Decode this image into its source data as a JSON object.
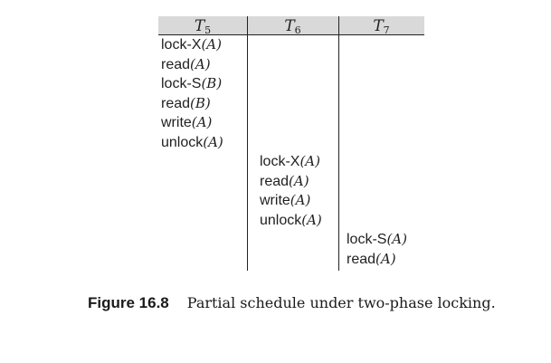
{
  "table": {
    "columns": [
      {
        "letter": "T",
        "sub": "5"
      },
      {
        "letter": "T",
        "sub": "6"
      },
      {
        "letter": "T",
        "sub": "7"
      }
    ],
    "t5_ops": [
      {
        "op": "lock-X",
        "arg": "(A)"
      },
      {
        "op": "read",
        "arg": "(A)"
      },
      {
        "op": "lock-S",
        "arg": "(B)"
      },
      {
        "op": "read",
        "arg": "(B)"
      },
      {
        "op": "write",
        "arg": "(A)"
      },
      {
        "op": "unlock",
        "arg": "(A)"
      }
    ],
    "t6_ops": [
      {
        "op": "lock-X",
        "arg": "(A)"
      },
      {
        "op": "read",
        "arg": "(A)"
      },
      {
        "op": "write",
        "arg": "(A)"
      },
      {
        "op": "unlock",
        "arg": "(A)"
      }
    ],
    "t7_ops": [
      {
        "op": "lock-S",
        "arg": "(A)"
      },
      {
        "op": "read",
        "arg": "(A)"
      }
    ]
  },
  "caption": {
    "label": "Figure 16.8",
    "text": "Partial schedule under two-phase locking."
  }
}
